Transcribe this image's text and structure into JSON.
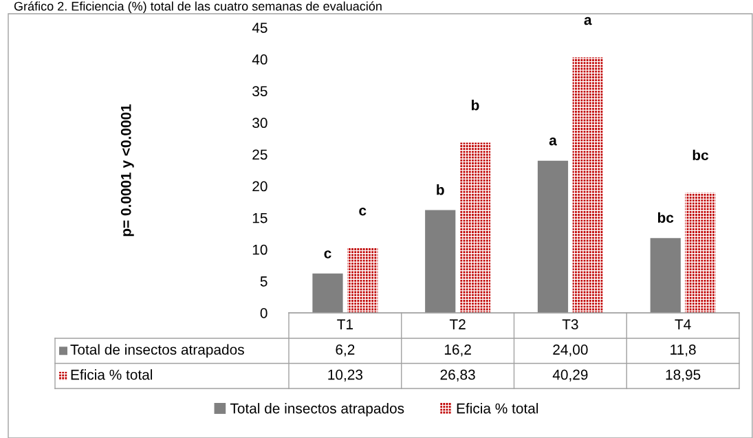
{
  "chart_data": {
    "type": "bar",
    "title": "Gráfico 2. Eficiencia (%) total de las cuatro semanas de evaluación",
    "categories": [
      "T1",
      "T2",
      "T3",
      "T4"
    ],
    "series": [
      {
        "name": "Total de insectos atrapados",
        "color": "#808080",
        "values": [
          6.2,
          16.2,
          24.0,
          11.8
        ],
        "value_labels": [
          "6,2",
          "16,2",
          "24,00",
          "11,8"
        ]
      },
      {
        "name": "Eficia % total",
        "color": "#c00000",
        "values": [
          10.23,
          26.83,
          40.29,
          18.95
        ],
        "value_labels": [
          "10,23",
          "26,83",
          "40,29",
          "18,95"
        ]
      }
    ],
    "ylim": [
      0,
      45
    ],
    "yticks": [
      0,
      5,
      10,
      15,
      20,
      25,
      30,
      35,
      40,
      45
    ],
    "grid": false,
    "legend": "bottom",
    "annotations": [
      "p= 0.0001 y <0.0001",
      {
        "text": "c",
        "x": "T1",
        "y": 6.2
      },
      {
        "text": "c",
        "x": "T1",
        "y": 10.23
      },
      {
        "text": "b",
        "x": "T2",
        "y": 16.2
      },
      {
        "text": "b",
        "x": "T2",
        "y": 26.83
      },
      {
        "text": "a",
        "x": "T3",
        "y": 24.0
      },
      {
        "text": "a",
        "x": "T3",
        "y": 40.29
      },
      {
        "text": "bc",
        "x": "T4",
        "y": 11.8
      },
      {
        "text": "bc",
        "x": "T4",
        "y": 18.95
      }
    ]
  }
}
